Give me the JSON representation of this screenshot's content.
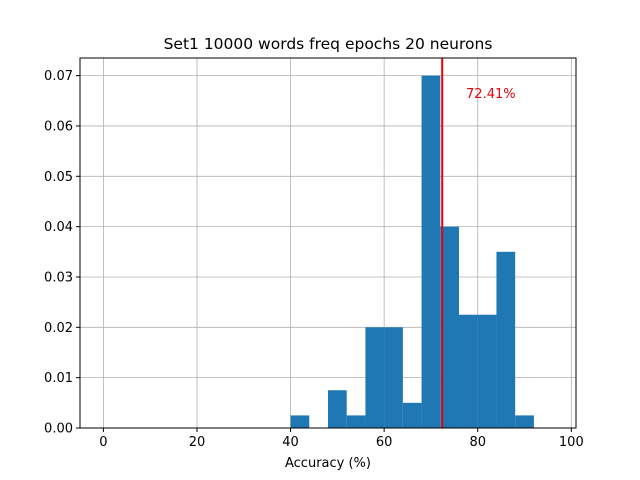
{
  "chart_data": {
    "type": "bar",
    "title": "Set1 10000 words freq epochs 20 neurons",
    "xlabel": "Accuracy (%)",
    "ylabel": "",
    "xlim": [
      -5,
      101
    ],
    "ylim": [
      0,
      0.0735
    ],
    "xticks": [
      0,
      20,
      40,
      60,
      80,
      100
    ],
    "yticks": [
      0.0,
      0.01,
      0.02,
      0.03,
      0.04,
      0.05,
      0.06,
      0.07
    ],
    "ytick_labels": [
      "0.00",
      "0.01",
      "0.02",
      "0.03",
      "0.04",
      "0.05",
      "0.06",
      "0.07"
    ],
    "grid": true,
    "bar_color": "#1f77b4",
    "bins": [
      {
        "x0": 40,
        "x1": 44,
        "value": 0.0025
      },
      {
        "x0": 44,
        "x1": 48,
        "value": 0.0
      },
      {
        "x0": 48,
        "x1": 52,
        "value": 0.0075
      },
      {
        "x0": 52,
        "x1": 56,
        "value": 0.0025
      },
      {
        "x0": 56,
        "x1": 60,
        "value": 0.02
      },
      {
        "x0": 60,
        "x1": 64,
        "value": 0.02
      },
      {
        "x0": 64,
        "x1": 68,
        "value": 0.005
      },
      {
        "x0": 68,
        "x1": 72,
        "value": 0.07
      },
      {
        "x0": 72,
        "x1": 76,
        "value": 0.04
      },
      {
        "x0": 76,
        "x1": 80,
        "value": 0.0225
      },
      {
        "x0": 80,
        "x1": 84,
        "value": 0.0225
      },
      {
        "x0": 84,
        "x1": 88,
        "value": 0.035
      },
      {
        "x0": 88,
        "x1": 92,
        "value": 0.0025
      }
    ],
    "vline": {
      "x": 72.41,
      "color": "#e8000b"
    },
    "annotation": {
      "text": "72.41%",
      "x": 77.5,
      "y": 0.0665,
      "color": "#e8000b"
    }
  }
}
